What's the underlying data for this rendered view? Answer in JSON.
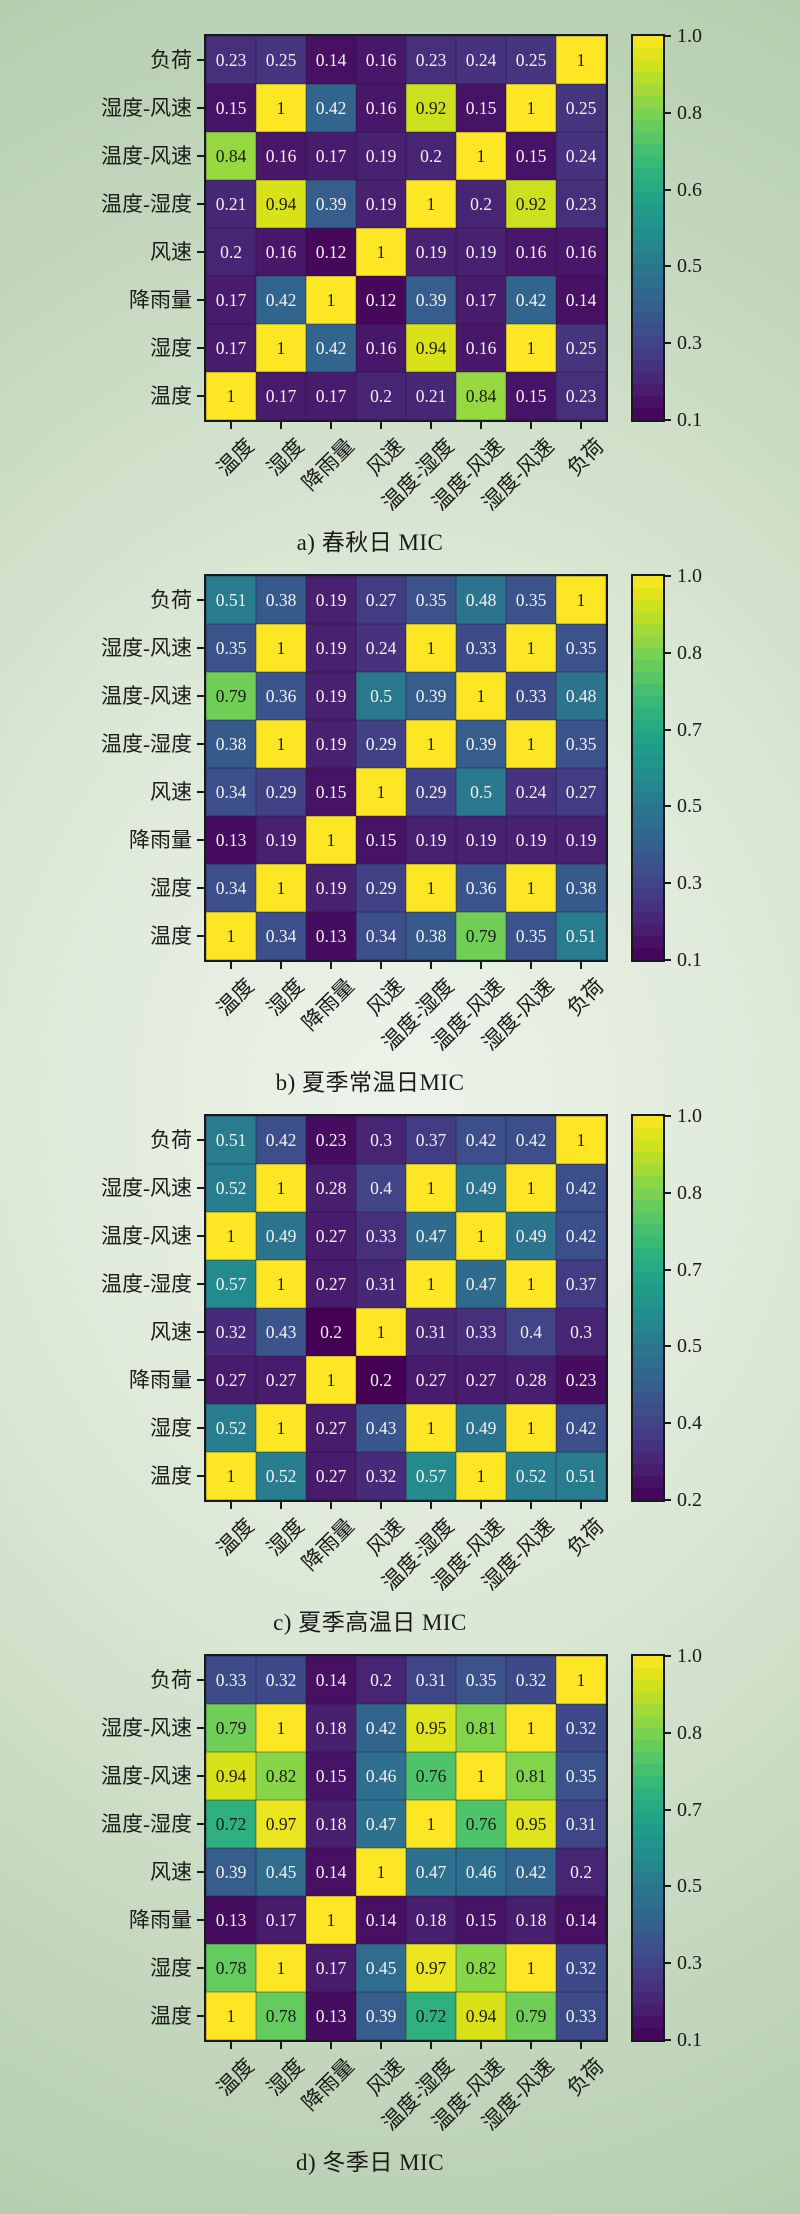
{
  "figure": {
    "colormap": "viridis",
    "border_color": "#181820",
    "background_edge_color": "#b2cbaa",
    "background_center_color": "#eef3ea",
    "cell_text_dark": "#1a1a1a",
    "cell_text_light": "#f2f2f2"
  },
  "chart_data": [
    {
      "type": "heatmap",
      "title": "a) 春秋日 MIC",
      "colormap": "viridis",
      "x_labels": [
        "温度",
        "湿度",
        "降雨量",
        "风速",
        "温度-湿度",
        "温度-风速",
        "湿度-风速",
        "负荷"
      ],
      "y_labels": [
        "负荷",
        "湿度-风速",
        "温度-风速",
        "温度-湿度",
        "风速",
        "降雨量",
        "湿度",
        "温度"
      ],
      "matrix": [
        [
          0.23,
          0.25,
          0.14,
          0.16,
          0.23,
          0.24,
          0.25,
          1
        ],
        [
          0.15,
          1,
          0.42,
          0.16,
          0.92,
          0.15,
          1,
          0.25
        ],
        [
          0.84,
          0.16,
          0.17,
          0.19,
          0.2,
          1,
          0.15,
          0.24
        ],
        [
          0.21,
          0.94,
          0.39,
          0.19,
          1,
          0.2,
          0.92,
          0.23
        ],
        [
          0.2,
          0.16,
          0.12,
          1,
          0.19,
          0.19,
          0.16,
          0.16
        ],
        [
          0.17,
          0.42,
          1,
          0.12,
          0.39,
          0.17,
          0.42,
          0.14
        ],
        [
          0.17,
          1,
          0.42,
          0.16,
          0.94,
          0.16,
          1,
          0.25
        ],
        [
          1,
          0.17,
          0.17,
          0.2,
          0.21,
          0.84,
          0.15,
          0.23
        ]
      ],
      "colorbar_ticks_top_to_bottom": [
        "1.0",
        "0.8",
        "0.6",
        "0.5",
        "0.3",
        "0.1"
      ],
      "value_scale_anchors_bottom_to_top": [
        0.1,
        0.3,
        0.5,
        0.6,
        0.8,
        1.0
      ]
    },
    {
      "type": "heatmap",
      "title": "b) 夏季常温日MIC",
      "colormap": "viridis",
      "x_labels": [
        "温度",
        "湿度",
        "降雨量",
        "风速",
        "温度-湿度",
        "温度-风速",
        "湿度-风速",
        "负荷"
      ],
      "y_labels": [
        "负荷",
        "湿度-风速",
        "温度-风速",
        "温度-湿度",
        "风速",
        "降雨量",
        "湿度",
        "温度"
      ],
      "matrix": [
        [
          0.51,
          0.38,
          0.19,
          0.27,
          0.35,
          0.48,
          0.35,
          1
        ],
        [
          0.35,
          1,
          0.19,
          0.24,
          1,
          0.33,
          1,
          0.35
        ],
        [
          0.79,
          0.36,
          0.19,
          0.5,
          0.39,
          1,
          0.33,
          0.48
        ],
        [
          0.38,
          1,
          0.19,
          0.29,
          1,
          0.39,
          1,
          0.35
        ],
        [
          0.34,
          0.29,
          0.15,
          1,
          0.29,
          0.5,
          0.24,
          0.27
        ],
        [
          0.13,
          0.19,
          1,
          0.15,
          0.19,
          0.19,
          0.19,
          0.19
        ],
        [
          0.34,
          1,
          0.19,
          0.29,
          1,
          0.36,
          1,
          0.38
        ],
        [
          1,
          0.34,
          0.13,
          0.34,
          0.38,
          0.79,
          0.35,
          0.51
        ]
      ],
      "colorbar_ticks_top_to_bottom": [
        "1.0",
        "0.8",
        "0.7",
        "0.5",
        "0.3",
        "0.1"
      ],
      "value_scale_anchors_bottom_to_top": [
        0.1,
        0.3,
        0.5,
        0.7,
        0.8,
        1.0
      ]
    },
    {
      "type": "heatmap",
      "title": "c) 夏季高温日 MIC",
      "colormap": "viridis",
      "x_labels": [
        "温度",
        "湿度",
        "降雨量",
        "风速",
        "温度-湿度",
        "温度-风速",
        "湿度-风速",
        "负荷"
      ],
      "y_labels": [
        "负荷",
        "湿度-风速",
        "温度-风速",
        "温度-湿度",
        "风速",
        "降雨量",
        "湿度",
        "温度"
      ],
      "matrix": [
        [
          0.51,
          0.42,
          0.23,
          0.3,
          0.37,
          0.42,
          0.42,
          1
        ],
        [
          0.52,
          1,
          0.28,
          0.4,
          1,
          0.49,
          1,
          0.42
        ],
        [
          1,
          0.49,
          0.27,
          0.33,
          0.47,
          1,
          0.49,
          0.42
        ],
        [
          0.57,
          1,
          0.27,
          0.31,
          1,
          0.47,
          1,
          0.37
        ],
        [
          0.32,
          0.43,
          0.2,
          1,
          0.31,
          0.33,
          0.4,
          0.3
        ],
        [
          0.27,
          0.27,
          1,
          0.2,
          0.27,
          0.27,
          0.28,
          0.23
        ],
        [
          0.52,
          1,
          0.27,
          0.43,
          1,
          0.49,
          1,
          0.42
        ],
        [
          1,
          0.52,
          0.27,
          0.32,
          0.57,
          1,
          0.52,
          0.51
        ]
      ],
      "colorbar_ticks_top_to_bottom": [
        "1.0",
        "0.8",
        "0.7",
        "0.5",
        "0.4",
        "0.2"
      ],
      "value_scale_anchors_bottom_to_top": [
        0.2,
        0.4,
        0.5,
        0.7,
        0.8,
        1.0
      ]
    },
    {
      "type": "heatmap",
      "title": "d) 冬季日 MIC",
      "colormap": "viridis",
      "x_labels": [
        "温度",
        "湿度",
        "降雨量",
        "风速",
        "温度-湿度",
        "温度-风速",
        "湿度-风速",
        "负荷"
      ],
      "y_labels": [
        "负荷",
        "湿度-风速",
        "温度-风速",
        "温度-湿度",
        "风速",
        "降雨量",
        "湿度",
        "温度"
      ],
      "matrix": [
        [
          0.33,
          0.32,
          0.14,
          0.2,
          0.31,
          0.35,
          0.32,
          1
        ],
        [
          0.79,
          1,
          0.18,
          0.42,
          0.95,
          0.81,
          1,
          0.32
        ],
        [
          0.94,
          0.82,
          0.15,
          0.46,
          0.76,
          1,
          0.81,
          0.35
        ],
        [
          0.72,
          0.97,
          0.18,
          0.47,
          1,
          0.76,
          0.95,
          0.31
        ],
        [
          0.39,
          0.45,
          0.14,
          1,
          0.47,
          0.46,
          0.42,
          0.2
        ],
        [
          0.13,
          0.17,
          1,
          0.14,
          0.18,
          0.15,
          0.18,
          0.14
        ],
        [
          0.78,
          1,
          0.17,
          0.45,
          0.97,
          0.82,
          1,
          0.32
        ],
        [
          1,
          0.78,
          0.13,
          0.39,
          0.72,
          0.94,
          0.79,
          0.33
        ]
      ],
      "colorbar_ticks_top_to_bottom": [
        "1.0",
        "0.8",
        "0.7",
        "0.5",
        "0.3",
        "0.1"
      ],
      "value_scale_anchors_bottom_to_top": [
        0.1,
        0.3,
        0.5,
        0.7,
        0.8,
        1.0
      ]
    }
  ]
}
